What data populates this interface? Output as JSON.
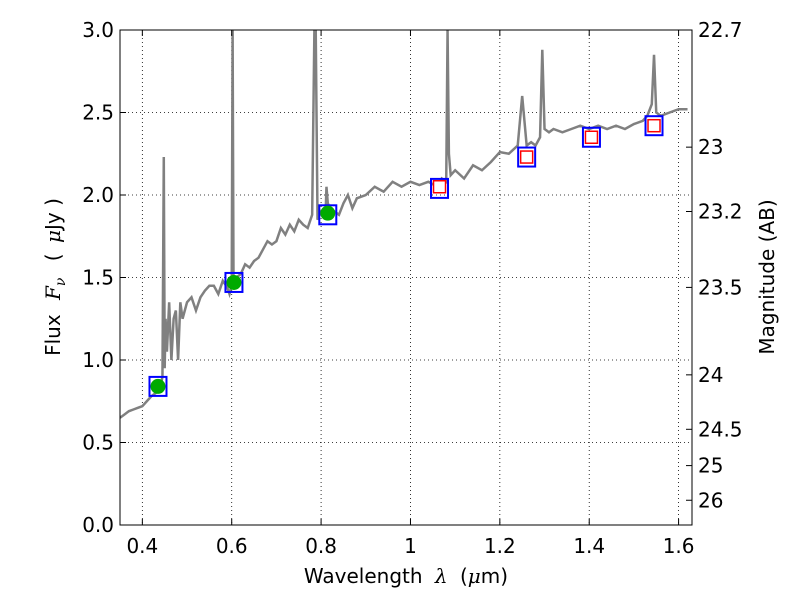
{
  "chart_data": {
    "type": "line",
    "xlabel_text": "Wavelength",
    "xlabel_symbol": "λ",
    "xlabel_unit_open": "(",
    "xlabel_unit_mu": "μ",
    "xlabel_unit_rest": "m)",
    "ylabel_text": "Flux",
    "ylabel_symbol": "F",
    "ylabel_sub": "ν",
    "ylabel_unit_open": "(",
    "ylabel_unit_mu": "μ",
    "ylabel_unit_rest": "Jy )",
    "y2label": "Magnitude (AB)",
    "xlim": [
      0.35,
      1.63
    ],
    "ylim": [
      0.0,
      3.0
    ],
    "grid": true,
    "x_ticks": [
      0.4,
      0.6,
      0.8,
      1.0,
      1.2,
      1.4,
      1.6
    ],
    "x_tick_labels": [
      "0.4",
      "0.6",
      "0.8",
      "1",
      "1.2",
      "1.4",
      "1.6"
    ],
    "y_ticks": [
      0.0,
      0.5,
      1.0,
      1.5,
      2.0,
      2.5,
      3.0
    ],
    "y_tick_labels": [
      "0.0",
      "0.5",
      "1.0",
      "1.5",
      "2.0",
      "2.5",
      "3.0"
    ],
    "y2_ticks": [
      {
        "label": "22.7",
        "flux": 3.0
      },
      {
        "label": "23",
        "flux": 2.29
      },
      {
        "label": "23.2",
        "flux": 1.9
      },
      {
        "label": "23.5",
        "flux": 1.44
      },
      {
        "label": "24",
        "flux": 0.91
      },
      {
        "label": "24.5",
        "flux": 0.58
      },
      {
        "label": "25",
        "flux": 0.36
      },
      {
        "label": "26",
        "flux": 0.15
      }
    ],
    "series": [
      {
        "kind": "spectrum",
        "color": "#808080",
        "x": [
          0.35,
          0.36,
          0.37,
          0.38,
          0.39,
          0.4,
          0.41,
          0.42,
          0.43,
          0.44,
          0.445,
          0.448,
          0.45,
          0.452,
          0.455,
          0.46,
          0.465,
          0.47,
          0.475,
          0.48,
          0.485,
          0.49,
          0.5,
          0.51,
          0.52,
          0.53,
          0.54,
          0.55,
          0.56,
          0.57,
          0.58,
          0.59,
          0.595,
          0.6,
          0.602,
          0.604,
          0.61,
          0.62,
          0.63,
          0.64,
          0.65,
          0.66,
          0.67,
          0.68,
          0.69,
          0.7,
          0.71,
          0.72,
          0.73,
          0.74,
          0.75,
          0.76,
          0.77,
          0.78,
          0.785,
          0.788,
          0.792,
          0.8,
          0.81,
          0.812,
          0.815,
          0.82,
          0.83,
          0.84,
          0.85,
          0.86,
          0.87,
          0.88,
          0.9,
          0.92,
          0.94,
          0.96,
          0.98,
          1.0,
          1.02,
          1.04,
          1.06,
          1.07,
          1.08,
          1.083,
          1.086,
          1.09,
          1.1,
          1.12,
          1.14,
          1.16,
          1.18,
          1.2,
          1.22,
          1.24,
          1.25,
          1.26,
          1.27,
          1.28,
          1.29,
          1.295,
          1.3,
          1.31,
          1.32,
          1.34,
          1.36,
          1.38,
          1.4,
          1.42,
          1.44,
          1.46,
          1.48,
          1.5,
          1.52,
          1.53,
          1.54,
          1.545,
          1.55,
          1.56,
          1.58,
          1.6,
          1.62
        ],
        "y": [
          0.65,
          0.67,
          0.69,
          0.7,
          0.71,
          0.72,
          0.75,
          0.78,
          0.8,
          0.82,
          0.9,
          2.23,
          0.95,
          1.25,
          1.05,
          1.35,
          1.0,
          1.25,
          1.3,
          1.0,
          1.35,
          1.25,
          1.35,
          1.38,
          1.3,
          1.38,
          1.42,
          1.45,
          1.45,
          1.4,
          1.48,
          1.44,
          1.4,
          1.45,
          3.0,
          1.48,
          1.5,
          1.52,
          1.58,
          1.56,
          1.6,
          1.62,
          1.67,
          1.72,
          1.7,
          1.72,
          1.8,
          1.76,
          1.82,
          1.78,
          1.85,
          1.82,
          1.8,
          1.88,
          3.0,
          3.0,
          1.85,
          1.9,
          1.88,
          2.05,
          1.95,
          1.92,
          1.9,
          1.88,
          1.95,
          2.0,
          1.92,
          1.98,
          2.0,
          2.05,
          2.02,
          2.08,
          2.05,
          2.08,
          2.06,
          2.08,
          2.05,
          2.1,
          2.08,
          3.0,
          2.25,
          2.12,
          2.15,
          2.1,
          2.18,
          2.15,
          2.2,
          2.26,
          2.25,
          2.3,
          2.6,
          2.3,
          2.32,
          2.3,
          2.35,
          2.88,
          2.4,
          2.38,
          2.4,
          2.38,
          2.4,
          2.42,
          2.4,
          2.42,
          2.4,
          2.42,
          2.4,
          2.43,
          2.45,
          2.48,
          2.55,
          2.85,
          2.5,
          2.48,
          2.5,
          2.52,
          2.52
        ]
      },
      {
        "kind": "model_photometry",
        "name": "",
        "marker": "square",
        "color": "#0000ff",
        "x": [
          0.435,
          0.605,
          0.815,
          1.065,
          1.26,
          1.405,
          1.545
        ],
        "y": [
          0.84,
          1.47,
          1.88,
          2.04,
          2.23,
          2.35,
          2.42
        ]
      },
      {
        "kind": "observed_photometry",
        "name": "",
        "marker": "circle",
        "color": "#00aa00",
        "x": [
          0.435,
          0.605,
          0.815
        ],
        "y": [
          0.84,
          1.47,
          1.89
        ]
      },
      {
        "kind": "upper_photometry",
        "name": "",
        "marker": "small-square",
        "color": "#ff0000",
        "x": [
          1.065,
          1.26,
          1.405,
          1.545
        ],
        "y": [
          2.05,
          2.23,
          2.35,
          2.42
        ]
      }
    ]
  }
}
